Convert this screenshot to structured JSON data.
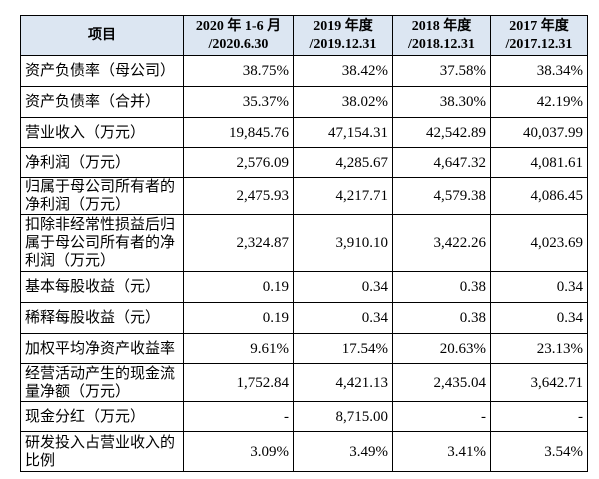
{
  "table": {
    "header": [
      [
        "项目"
      ],
      [
        "2020 年 1-6 月",
        "/2020.6.30"
      ],
      [
        "2019 年度",
        "/2019.12.31"
      ],
      [
        "2018 年度",
        "/2018.12.31"
      ],
      [
        "2017 年度",
        "/2017.12.31"
      ]
    ],
    "rows": [
      [
        "资产负债率（母公司）",
        "38.75%",
        "38.42%",
        "37.58%",
        "38.34%"
      ],
      [
        "资产负债率（合并）",
        "35.37%",
        "38.02%",
        "38.30%",
        "42.19%"
      ],
      [
        "营业收入（万元）",
        "19,845.76",
        "47,154.31",
        "42,542.89",
        "40,037.99"
      ],
      [
        "净利润（万元）",
        "2,576.09",
        "4,285.67",
        "4,647.32",
        "4,081.61"
      ],
      [
        "归属于母公司所有者的净利润（万元）",
        "2,475.93",
        "4,217.71",
        "4,579.38",
        "4,086.45"
      ],
      [
        "扣除非经常性损益后归属于母公司所有者的净利润（万元）",
        "2,324.87",
        "3,910.10",
        "3,422.26",
        "4,023.69"
      ],
      [
        "基本每股收益（元）",
        "0.19",
        "0.34",
        "0.38",
        "0.34"
      ],
      [
        "稀释每股收益（元）",
        "0.19",
        "0.34",
        "0.38",
        "0.34"
      ],
      [
        "加权平均净资产收益率",
        "9.61%",
        "17.54%",
        "20.63%",
        "23.13%"
      ],
      [
        "经营活动产生的现金流量净额（万元）",
        "1,752.84",
        "4,421.13",
        "2,435.04",
        "3,642.71"
      ],
      [
        "现金分红（万元）",
        "-",
        "8,715.00",
        "-",
        "-"
      ],
      [
        "研发投入占营业收入的比例",
        "3.09%",
        "3.49%",
        "3.41%",
        "3.54%"
      ]
    ]
  }
}
